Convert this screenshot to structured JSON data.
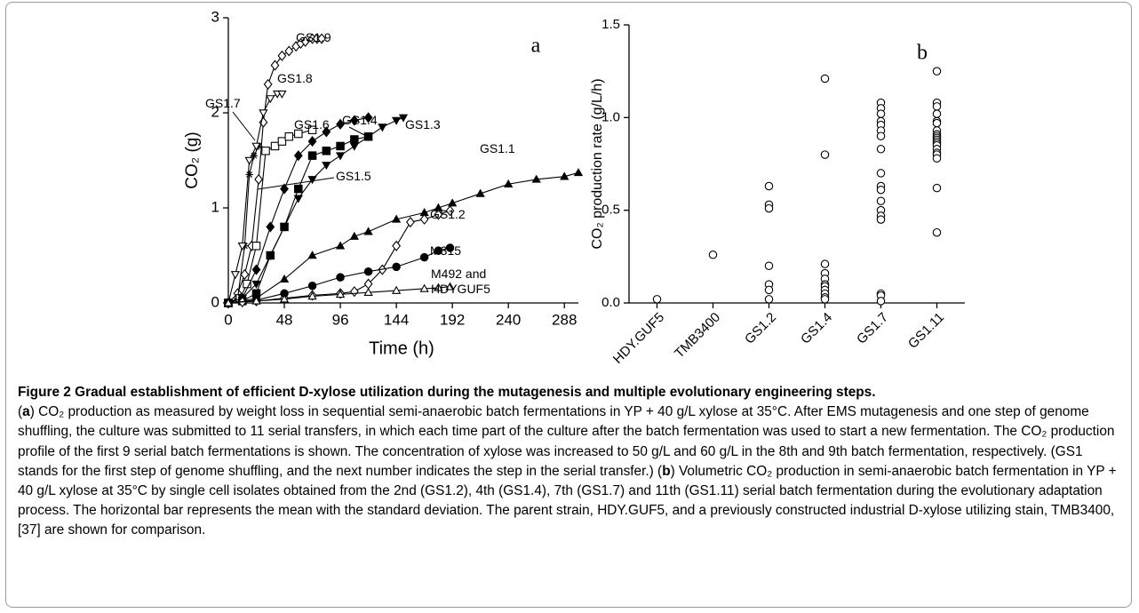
{
  "chart_data": [
    {
      "type": "line",
      "panel_label": "a",
      "x_label": "Time (h)",
      "y_label": "CO₂ (g)",
      "color": "#000000",
      "xlim": [
        0,
        300
      ],
      "xticks": [
        0,
        48,
        96,
        144,
        192,
        240,
        288
      ],
      "ylim": [
        0,
        3
      ],
      "yticks": [
        0,
        1,
        2,
        3
      ],
      "series": [
        {
          "name": "GS1.9",
          "marker": "diamond-open",
          "x": [
            0,
            8,
            14,
            20,
            26,
            30,
            34,
            40,
            46,
            52,
            58,
            62,
            66,
            72,
            76,
            80
          ],
          "values": [
            0,
            0.1,
            0.3,
            0.6,
            1.3,
            1.9,
            2.3,
            2.5,
            2.6,
            2.65,
            2.7,
            2.73,
            2.75,
            2.78,
            2.78,
            2.78
          ]
        },
        {
          "name": "GS1.7",
          "marker": "asterisk",
          "x": [
            0,
            8,
            14,
            18,
            22,
            26
          ],
          "values": [
            0,
            0.05,
            0.6,
            1.35,
            1.55,
            1.65
          ]
        },
        {
          "name": "GS1.8",
          "marker": "triangle-down-open",
          "x": [
            0,
            6,
            12,
            18,
            24,
            30,
            36,
            42,
            46
          ],
          "values": [
            0,
            0.3,
            0.6,
            1.5,
            1.65,
            2.0,
            2.15,
            2.2,
            2.2
          ]
        },
        {
          "name": "GS1.6",
          "marker": "square-open",
          "x": [
            0,
            10,
            16,
            24,
            32,
            40,
            46,
            52,
            60,
            72
          ],
          "values": [
            0,
            0.05,
            0.2,
            0.6,
            1.6,
            1.65,
            1.7,
            1.75,
            1.78,
            1.82
          ]
        },
        {
          "name": "GS1.4",
          "marker": "diamond-filled",
          "x": [
            0,
            12,
            24,
            36,
            48,
            60,
            72,
            84,
            96,
            108,
            120
          ],
          "values": [
            0,
            0.05,
            0.35,
            0.8,
            1.2,
            1.55,
            1.7,
            1.8,
            1.88,
            1.92,
            1.95
          ]
        },
        {
          "name": "GS1.3",
          "marker": "triangle-down-filled",
          "x": [
            0,
            12,
            24,
            36,
            48,
            60,
            72,
            84,
            96,
            108,
            120,
            132,
            144,
            150
          ],
          "values": [
            0,
            0.05,
            0.2,
            0.5,
            0.8,
            1.1,
            1.3,
            1.45,
            1.55,
            1.65,
            1.75,
            1.85,
            1.92,
            1.95
          ]
        },
        {
          "name": "GS1.5",
          "marker": "square-filled",
          "x": [
            0,
            12,
            24,
            36,
            48,
            60,
            72,
            84,
            96,
            108,
            120
          ],
          "values": [
            0,
            0.02,
            0.1,
            0.5,
            0.8,
            1.2,
            1.55,
            1.6,
            1.65,
            1.72,
            1.75
          ]
        },
        {
          "name": "GS1.1",
          "marker": "triangle-up-filled",
          "x": [
            0,
            12,
            24,
            48,
            72,
            96,
            108,
            120,
            144,
            168,
            180,
            192,
            216,
            240,
            264,
            288,
            300
          ],
          "values": [
            0,
            0.02,
            0.05,
            0.25,
            0.5,
            0.6,
            0.7,
            0.75,
            0.88,
            0.95,
            1.0,
            1.05,
            1.15,
            1.25,
            1.3,
            1.33,
            1.37
          ]
        },
        {
          "name": "GS1.2",
          "marker": "diamond-open",
          "x": [
            0,
            12,
            24,
            48,
            72,
            96,
            108,
            120,
            132,
            144,
            156,
            168,
            180,
            190
          ],
          "values": [
            0,
            0.01,
            0.02,
            0.05,
            0.08,
            0.1,
            0.12,
            0.2,
            0.35,
            0.6,
            0.85,
            0.88,
            0.93,
            0.97
          ]
        },
        {
          "name": "M315",
          "marker": "circle-filled",
          "x": [
            0,
            24,
            48,
            72,
            96,
            120,
            144,
            168,
            180,
            190
          ],
          "values": [
            0,
            0.03,
            0.1,
            0.18,
            0.27,
            0.33,
            0.38,
            0.48,
            0.55,
            0.58
          ]
        },
        {
          "name": "M492 and HDYGUF5",
          "marker": "triangle-up-open",
          "x": [
            0,
            24,
            48,
            72,
            96,
            120,
            144,
            168,
            180,
            190
          ],
          "values": [
            0,
            0.02,
            0.04,
            0.07,
            0.09,
            0.11,
            0.13,
            0.15,
            0.16,
            0.17
          ]
        }
      ]
    },
    {
      "type": "dot",
      "panel_label": "b",
      "y_label": "CO₂ production rate (g/L/h)",
      "color": "#000000",
      "marker": "circle-open",
      "ylim": [
        0,
        1.5
      ],
      "yticks": [
        {
          "value": 0,
          "label": "0.0"
        },
        0.5,
        {
          "value": 1,
          "label": "1.0"
        },
        1.5
      ],
      "categories": [
        "HDY.GUF5",
        "TMB3400",
        "GS1.2",
        "GS1.4",
        "GS1.7",
        "GS1.11"
      ],
      "values": [
        [
          0.02
        ],
        [
          0.26
        ],
        [
          0.63,
          0.53,
          0.51,
          0.2,
          0.1,
          0.07,
          0.02
        ],
        [
          1.21,
          0.8,
          0.21,
          0.16,
          0.13,
          0.1,
          0.09,
          0.07,
          0.05,
          0.03,
          0.02
        ],
        [
          1.08,
          1.05,
          1.02,
          0.98,
          0.96,
          0.93,
          0.9,
          0.83,
          0.7,
          0.63,
          0.61,
          0.55,
          0.5,
          0.47,
          0.45,
          0.05,
          0.04,
          0.01
        ],
        [
          1.25,
          1.08,
          1.06,
          1.02,
          0.98,
          0.97,
          0.93,
          0.91,
          0.9,
          0.89,
          0.88,
          0.87,
          0.86,
          0.85,
          0.83,
          0.81,
          0.8,
          0.78,
          0.62,
          0.38
        ]
      ]
    }
  ],
  "caption": {
    "title": "Figure 2 Gradual establishment of efficient D-xylose utilization during the mutagenesis and multiple evolutionary engineering steps.",
    "runs": [
      {
        "text": "(",
        "bold": false
      },
      {
        "text": "a",
        "bold": true
      },
      {
        "text": ") CO₂ production as measured by weight loss in sequential semi-anaerobic batch fermentations in YP + 40 g/L xylose at 35°C. After EMS mutagenesis and one step of genome shuffling, the culture was submitted to 11 serial transfers, in which each time part of the culture after the batch fermentation was used to start a new fermentation. The CO₂ production profile of the first 9 serial batch fermentations is shown. The concentration of xylose was increased to 50 g/L and 60 g/L in the 8th and 9th batch fermentation, respectively. (GS1 stands for the first step of genome shuffling, and the next number indicates the step in the serial transfer.) (",
        "bold": false
      },
      {
        "text": "b",
        "bold": true
      },
      {
        "text": ") Volumetric CO₂ production in semi-anaerobic batch fermentation in YP + 40 g/L xylose at 35°C by single cell isolates obtained from the 2nd (GS1.2), 4th (GS1.4), 7th (GS1.7) and 11th (GS1.11) serial batch fermentation during the evolutionary adaptation process. The horizontal bar represents the mean with the standard deviation. The parent strain, HDY.GUF5, and a previously constructed industrial D-xylose utilizing stain, TMB3400, [37] are shown for comparison.",
        "bold": false
      }
    ]
  }
}
